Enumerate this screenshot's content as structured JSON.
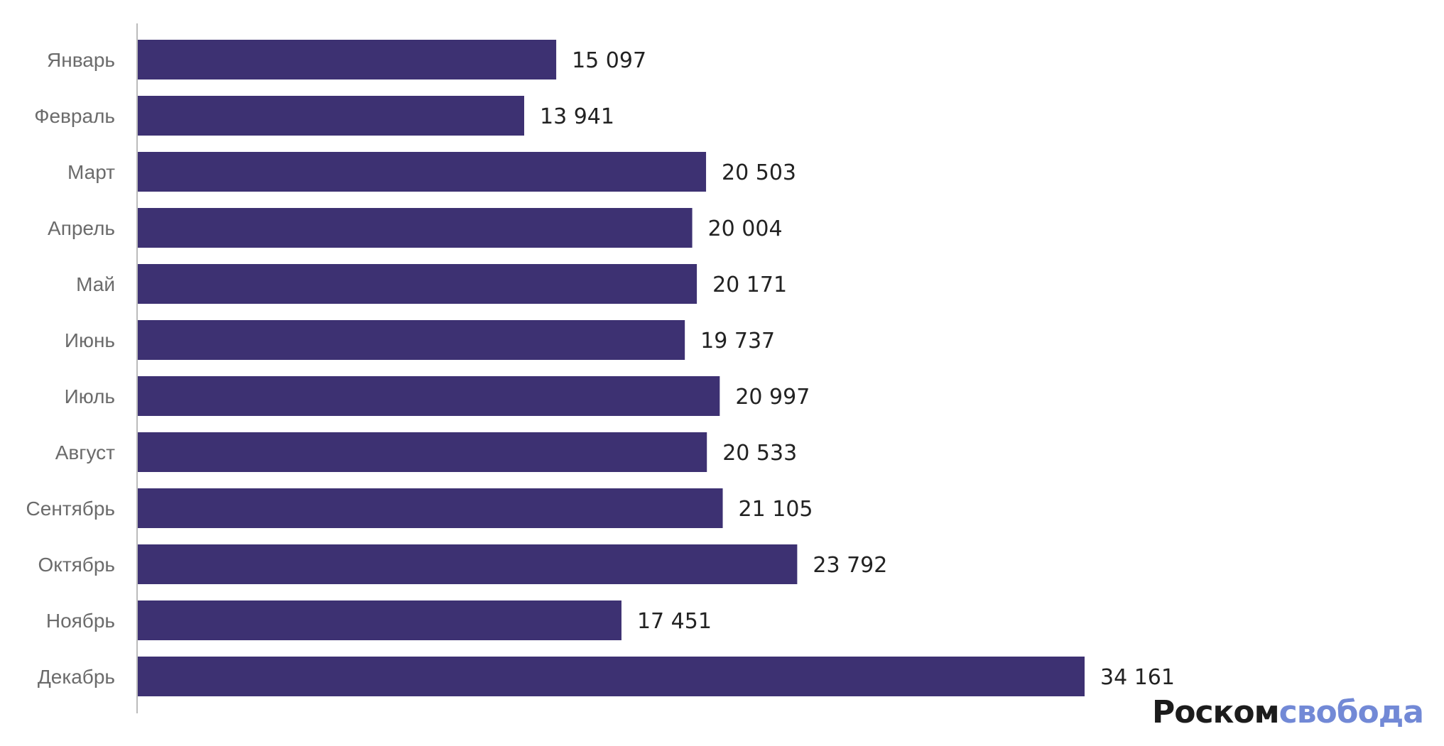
{
  "chart_data": {
    "type": "bar",
    "orientation": "horizontal",
    "categories": [
      "Январь",
      "Февраль",
      "Март",
      "Апрель",
      "Май",
      "Июнь",
      "Июль",
      "Август",
      "Сентябрь",
      "Октябрь",
      "Ноябрь",
      "Декабрь"
    ],
    "values": [
      15097,
      13941,
      20503,
      20004,
      20171,
      19737,
      20997,
      20533,
      21105,
      23792,
      17451,
      34161
    ],
    "data_labels": [
      "15 097",
      "13 941",
      "20 503",
      "20 004",
      "20 171",
      "19 737",
      "20 997",
      "20 533",
      "21 105",
      "23 792",
      "17 451",
      "34 161"
    ],
    "title": "",
    "xlabel": "",
    "ylabel": "",
    "xlim": [
      0,
      34161
    ],
    "grid": false,
    "bar_color": "#3d3172"
  },
  "logo": {
    "part1": "Роском",
    "part2": "свобода"
  }
}
